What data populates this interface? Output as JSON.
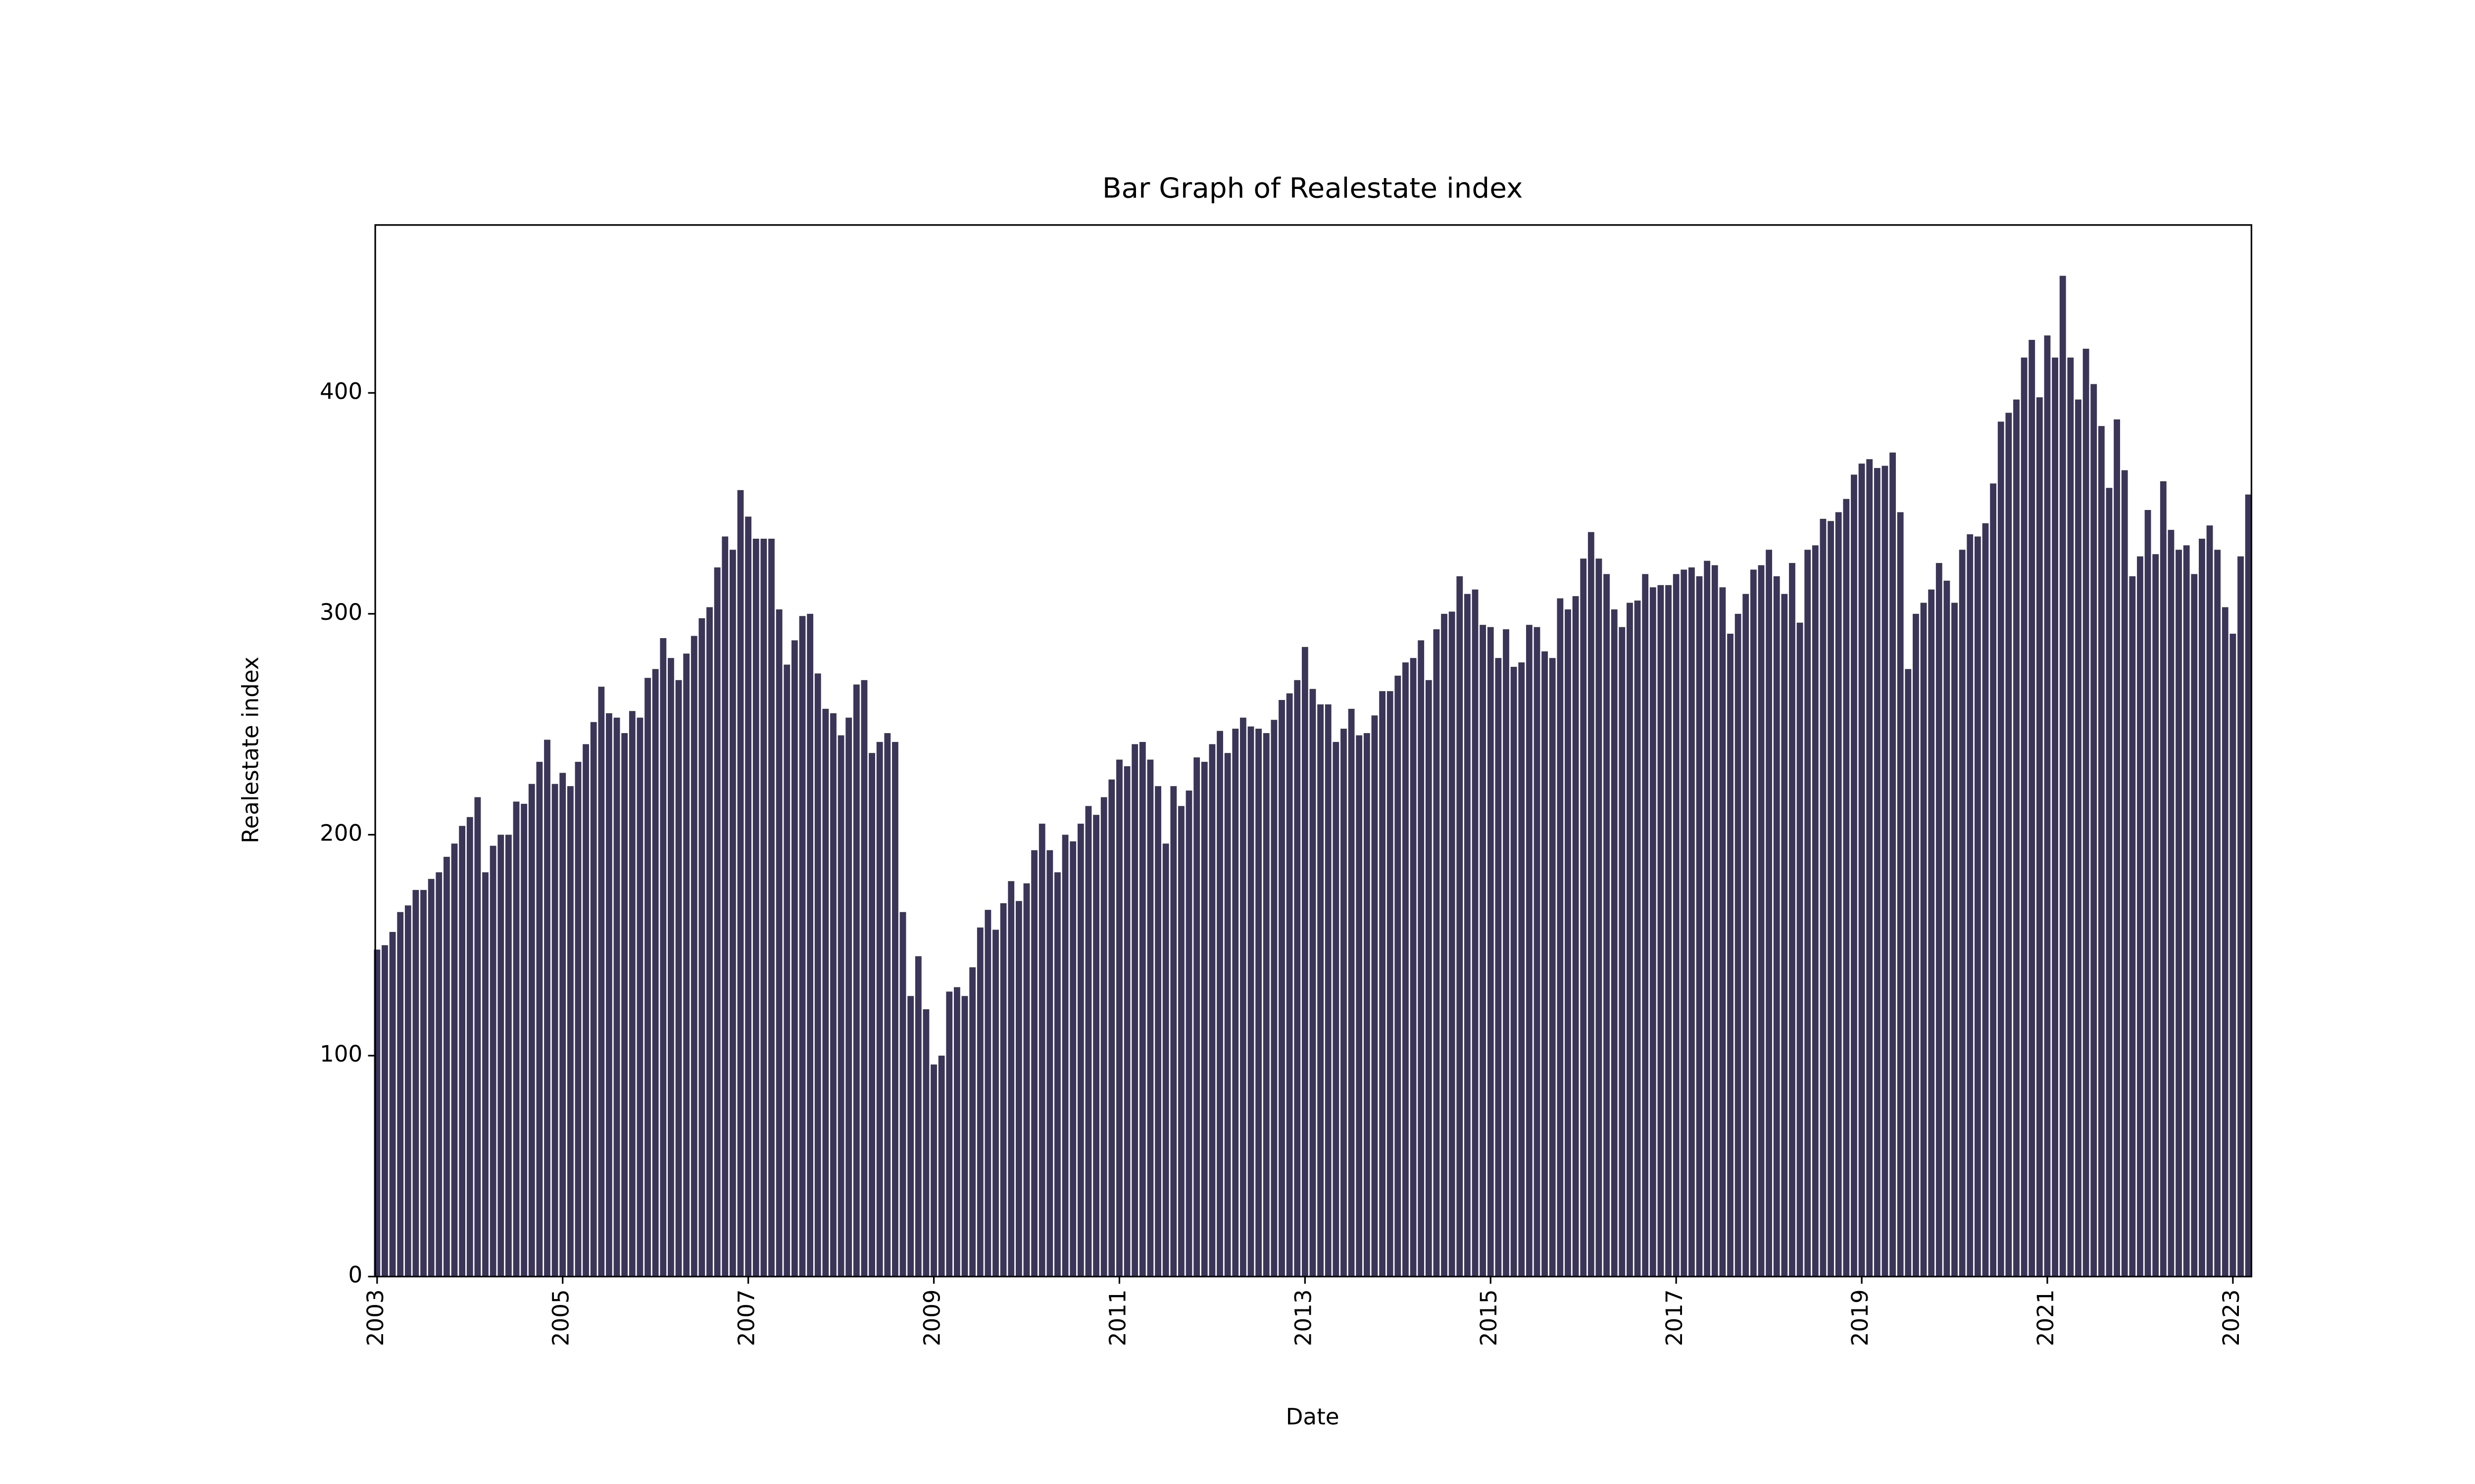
{
  "chart_data": {
    "type": "bar",
    "title": "Bar Graph of Realestate index",
    "x_label": "Date",
    "y_label": "Realestate index",
    "color": "#3b3558",
    "xlim": [
      2002.98,
      2023.2
    ],
    "xticks": [
      2003,
      2005,
      2007,
      2009,
      2011,
      2013,
      2015,
      2017,
      2019,
      2021,
      2023
    ],
    "ylim": [
      0,
      476
    ],
    "yticks": [
      0,
      100,
      200,
      300,
      400
    ],
    "x": [
      "2003-01",
      "2003-02",
      "2003-03",
      "2003-04",
      "2003-05",
      "2003-06",
      "2003-07",
      "2003-08",
      "2003-09",
      "2003-10",
      "2003-11",
      "2003-12",
      "2004-01",
      "2004-02",
      "2004-03",
      "2004-04",
      "2004-05",
      "2004-06",
      "2004-07",
      "2004-08",
      "2004-09",
      "2004-10",
      "2004-11",
      "2004-12",
      "2005-01",
      "2005-02",
      "2005-03",
      "2005-04",
      "2005-05",
      "2005-06",
      "2005-07",
      "2005-08",
      "2005-09",
      "2005-10",
      "2005-11",
      "2005-12",
      "2006-01",
      "2006-02",
      "2006-03",
      "2006-04",
      "2006-05",
      "2006-06",
      "2006-07",
      "2006-08",
      "2006-09",
      "2006-10",
      "2006-11",
      "2006-12",
      "2007-01",
      "2007-02",
      "2007-03",
      "2007-04",
      "2007-05",
      "2007-06",
      "2007-07",
      "2007-08",
      "2007-09",
      "2007-10",
      "2007-11",
      "2007-12",
      "2008-01",
      "2008-02",
      "2008-03",
      "2008-04",
      "2008-05",
      "2008-06",
      "2008-07",
      "2008-08",
      "2008-09",
      "2008-10",
      "2008-11",
      "2008-12",
      "2009-01",
      "2009-02",
      "2009-03",
      "2009-04",
      "2009-05",
      "2009-06",
      "2009-07",
      "2009-08",
      "2009-09",
      "2009-10",
      "2009-11",
      "2009-12",
      "2010-01",
      "2010-02",
      "2010-03",
      "2010-04",
      "2010-05",
      "2010-06",
      "2010-07",
      "2010-08",
      "2010-09",
      "2010-10",
      "2010-11",
      "2010-12",
      "2011-01",
      "2011-02",
      "2011-03",
      "2011-04",
      "2011-05",
      "2011-06",
      "2011-07",
      "2011-08",
      "2011-09",
      "2011-10",
      "2011-11",
      "2011-12",
      "2012-01",
      "2012-02",
      "2012-03",
      "2012-04",
      "2012-05",
      "2012-06",
      "2012-07",
      "2012-08",
      "2012-09",
      "2012-10",
      "2012-11",
      "2012-12",
      "2013-01",
      "2013-02",
      "2013-03",
      "2013-04",
      "2013-05",
      "2013-06",
      "2013-07",
      "2013-08",
      "2013-09",
      "2013-10",
      "2013-11",
      "2013-12",
      "2014-01",
      "2014-02",
      "2014-03",
      "2014-04",
      "2014-05",
      "2014-06",
      "2014-07",
      "2014-08",
      "2014-09",
      "2014-10",
      "2014-11",
      "2014-12",
      "2015-01",
      "2015-02",
      "2015-03",
      "2015-04",
      "2015-05",
      "2015-06",
      "2015-07",
      "2015-08",
      "2015-09",
      "2015-10",
      "2015-11",
      "2015-12",
      "2016-01",
      "2016-02",
      "2016-03",
      "2016-04",
      "2016-05",
      "2016-06",
      "2016-07",
      "2016-08",
      "2016-09",
      "2016-10",
      "2016-11",
      "2016-12",
      "2017-01",
      "2017-02",
      "2017-03",
      "2017-04",
      "2017-05",
      "2017-06",
      "2017-07",
      "2017-08",
      "2017-09",
      "2017-10",
      "2017-11",
      "2017-12",
      "2018-01",
      "2018-02",
      "2018-03",
      "2018-04",
      "2018-05",
      "2018-06",
      "2018-07",
      "2018-08",
      "2018-09",
      "2018-10",
      "2018-11",
      "2018-12",
      "2019-01",
      "2019-02",
      "2019-03",
      "2019-04",
      "2019-05",
      "2019-06",
      "2019-07",
      "2019-08",
      "2019-09",
      "2019-10",
      "2019-11",
      "2019-12",
      "2020-01",
      "2020-02",
      "2020-03",
      "2020-04",
      "2020-05",
      "2020-06",
      "2020-07",
      "2020-08",
      "2020-09",
      "2020-10",
      "2020-11",
      "2020-12",
      "2021-01",
      "2021-02",
      "2021-03",
      "2021-04",
      "2021-05",
      "2021-06",
      "2021-07",
      "2021-08",
      "2021-09",
      "2021-10",
      "2021-11",
      "2021-12",
      "2022-01",
      "2022-02",
      "2022-03",
      "2022-04",
      "2022-05",
      "2022-06",
      "2022-07",
      "2022-08",
      "2022-09",
      "2022-10",
      "2022-11",
      "2022-12",
      "2023-01",
      "2023-02",
      "2023-03"
    ],
    "values": [
      148,
      150,
      156,
      165,
      168,
      175,
      175,
      180,
      183,
      190,
      196,
      204,
      208,
      217,
      183,
      195,
      200,
      200,
      215,
      214,
      223,
      233,
      243,
      223,
      228,
      222,
      233,
      241,
      251,
      267,
      255,
      253,
      246,
      256,
      253,
      271,
      275,
      289,
      280,
      270,
      282,
      290,
      298,
      303,
      321,
      335,
      329,
      356,
      344,
      334,
      334,
      334,
      302,
      277,
      288,
      299,
      300,
      273,
      257,
      255,
      245,
      253,
      268,
      270,
      237,
      242,
      246,
      242,
      165,
      127,
      145,
      121,
      96,
      100,
      129,
      131,
      127,
      140,
      158,
      166,
      157,
      169,
      179,
      170,
      178,
      193,
      205,
      193,
      183,
      200,
      197,
      205,
      213,
      209,
      217,
      225,
      234,
      231,
      241,
      242,
      234,
      222,
      196,
      222,
      213,
      220,
      235,
      233,
      241,
      247,
      237,
      248,
      253,
      249,
      248,
      246,
      252,
      261,
      264,
      270,
      285,
      266,
      259,
      259,
      242,
      248,
      257,
      245,
      246,
      254,
      265,
      265,
      272,
      278,
      280,
      288,
      270,
      293,
      300,
      301,
      317,
      309,
      311,
      295,
      294,
      280,
      293,
      276,
      278,
      295,
      294,
      283,
      280,
      307,
      302,
      308,
      325,
      337,
      325,
      318,
      302,
      294,
      305,
      306,
      318,
      312,
      313,
      313,
      318,
      320,
      321,
      317,
      324,
      322,
      312,
      291,
      300,
      309,
      320,
      322,
      329,
      317,
      309,
      323,
      296,
      329,
      331,
      343,
      342,
      346,
      352,
      363,
      368,
      370,
      366,
      367,
      373,
      346,
      275,
      300,
      305,
      311,
      323,
      315,
      305,
      329,
      336,
      335,
      341,
      359,
      387,
      391,
      397,
      416,
      424,
      398,
      426,
      416,
      453,
      416,
      397,
      420,
      404,
      385,
      357,
      388,
      365,
      317,
      326,
      347,
      327,
      360,
      338,
      329,
      331,
      318,
      334,
      340,
      329,
      303,
      291,
      326,
      354
    ]
  }
}
